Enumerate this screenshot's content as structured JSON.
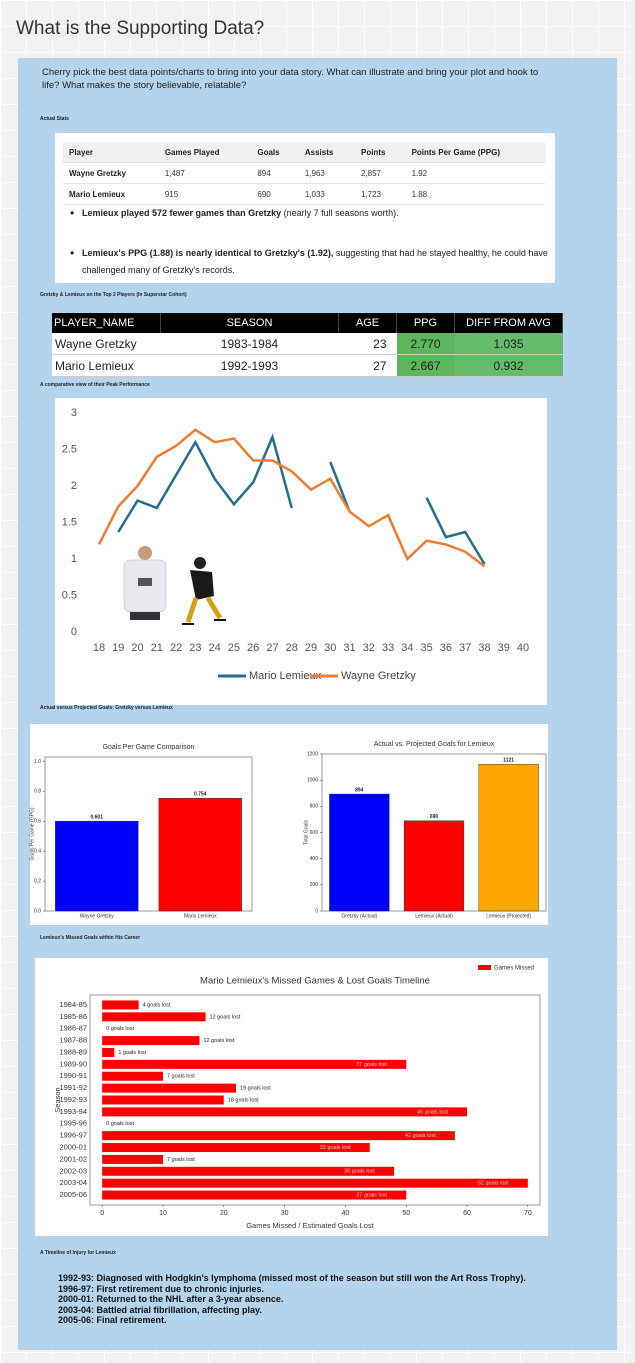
{
  "title": "What is the Supporting Data?",
  "intro": "Cherry pick the best data points/charts to bring into your data story. What can illustrate and bring your plot and hook to life? What makes the story believable, relatable?",
  "stats_section": {
    "label": "Actual Stats",
    "table": {
      "columns": [
        "Player",
        "Games Played",
        "Goals",
        "Assists",
        "Points",
        "Points Per Game (PPG)"
      ],
      "rows": [
        [
          "Wayne Gretzky",
          "1,487",
          "894",
          "1,963",
          "2,857",
          "1.92"
        ],
        [
          "Mario Lemieux",
          "915",
          "690",
          "1,033",
          "1,723",
          "1.88"
        ]
      ]
    },
    "bullets": [
      {
        "bold": "Lemieux played 572 fewer games than Gretzky",
        "text": " (nearly 7 full seasons worth)."
      },
      {
        "bold": "Lemieux's PPG (1.88) is nearly identical to Gretzky's (1.92),",
        "text": " suggesting that had he stayed healthy, he could have challenged many of Gretzky's records."
      }
    ]
  },
  "peak_section": {
    "label": "Gretzky & Lemieux on the Top 2 Players (In Superstar Cohort)",
    "table": {
      "columns": [
        "PLAYER_NAME",
        "SEASON",
        "AGE",
        "PPG",
        "DIFF FROM AVG"
      ],
      "rows": [
        [
          "Wayne Gretzky",
          "1983-1984",
          "23",
          "2.770",
          "1.035"
        ],
        [
          "Mario Lemieux",
          "1992-1993",
          "27",
          "2.667",
          "0.932"
        ]
      ]
    }
  },
  "peak_chart": {
    "label": "A comparative view of their Peak Performance",
    "type": "line",
    "x": [
      18,
      19,
      20,
      21,
      22,
      23,
      24,
      25,
      26,
      27,
      28,
      29,
      30,
      31,
      32,
      33,
      34,
      35,
      36,
      37,
      38,
      39,
      40
    ],
    "xlim": [
      18,
      40
    ],
    "ylim": [
      0,
      3
    ],
    "yticks": [
      0,
      0.5,
      1,
      1.5,
      2,
      2.5,
      3
    ],
    "series": [
      {
        "name": "Mario Lemieux",
        "color": "#256d8f",
        "values": [
          null,
          1.37,
          1.8,
          1.7,
          2.15,
          2.6,
          2.1,
          1.75,
          2.05,
          2.67,
          1.7,
          null,
          2.33,
          1.65,
          null,
          null,
          null,
          1.84,
          1.3,
          1.37,
          0.93,
          null,
          null
        ]
      },
      {
        "name": "Wayne Gretzky",
        "color": "#ee7d31",
        "values": [
          1.2,
          1.72,
          2.0,
          2.4,
          2.55,
          2.77,
          2.6,
          2.65,
          2.35,
          2.35,
          2.2,
          1.95,
          2.1,
          1.65,
          1.45,
          1.6,
          1.0,
          1.25,
          1.2,
          1.1,
          0.9,
          null,
          null
        ]
      }
    ]
  },
  "goals_section": {
    "label": "Actual versus Projected Goals: Gretzky versus Lemieux",
    "charts": [
      {
        "type": "bar",
        "title": "Goals Per Game Comparison",
        "ylabel": "Goals Per Game (GPG)",
        "categories": [
          "Wayne Gretzky",
          "Mario Lemieux"
        ],
        "values": [
          0.601,
          0.754
        ],
        "colors": [
          "#0000ff",
          "#ff0000"
        ],
        "ylim": [
          0,
          1.03
        ],
        "yticks": [
          {
            "value": 0,
            "label": "0.0"
          },
          0.2,
          0.4,
          0.6,
          0.8,
          {
            "value": 1,
            "label": "1.0"
          }
        ]
      },
      {
        "type": "bar",
        "title": "Actual vs. Projected Goals for Lemieux",
        "ylabel": "Total Goals",
        "categories": [
          "Gretzky (Actual)",
          "Lemieux (Actual)",
          "Lemieux (Projected)"
        ],
        "values": [
          894,
          690,
          1121
        ],
        "colors": [
          "#0000ff",
          "#ff0000",
          "#ffa500"
        ],
        "ylim": [
          0,
          1200
        ],
        "yticks": [
          0,
          200,
          400,
          600,
          800,
          1000,
          1200
        ]
      }
    ]
  },
  "missed_chart": {
    "label": "Lemieux's Missed Goals within His Career",
    "type": "barh",
    "title": "Mario Lemieux's Missed Games & Lost Goals Timeline",
    "categories": [
      "1984-85",
      "1985-86",
      "1986-87",
      "1987-88",
      "1988-89",
      "1989-90",
      "1990-91",
      "1991-92",
      "1992-93",
      "1993-94",
      "1995-96",
      "1996-97",
      "2000-01",
      "2001-02",
      "2002-03",
      "2003-04",
      "2005-06"
    ],
    "values": [
      6,
      17,
      0,
      16,
      2,
      50,
      10,
      22,
      20,
      60,
      0,
      58,
      44,
      10,
      48,
      70,
      50
    ],
    "bar_labels": [
      "4 goals lost",
      "12 goals lost",
      "0 goals lost",
      "12 goals lost",
      "1 goals lost",
      "37 goals lost",
      "7 goals lost",
      "19 goals lost",
      "18 goals lost",
      "45 goals lost",
      "0 goals lost",
      "42 goals lost",
      "33 goals lost",
      "7 goals lost",
      "36 goals lost",
      "52 goals lost",
      "37 goals lost"
    ],
    "color": "#ff0000",
    "legend": "Games Missed",
    "xlabel": "Games Missed / Estimated Goals Lost",
    "ylabel": "Season",
    "xlim": [
      -2,
      72
    ],
    "xticks": [
      0,
      10,
      20,
      30,
      40,
      50,
      60,
      70
    ]
  },
  "timeline": {
    "label": "A Timeline of Injury for Lemieux",
    "notes": [
      "1992-93: Diagnosed with Hodgkin's lymphoma (missed most of the season but still won the Art Ross Trophy).",
      "1996-97: First retirement due to chronic injuries.",
      "2000-01: Returned to the NHL after a 3-year absence.",
      "2003-04: Battled atrial fibrillation, affecting play.",
      "2005-06: Final retirement."
    ]
  }
}
